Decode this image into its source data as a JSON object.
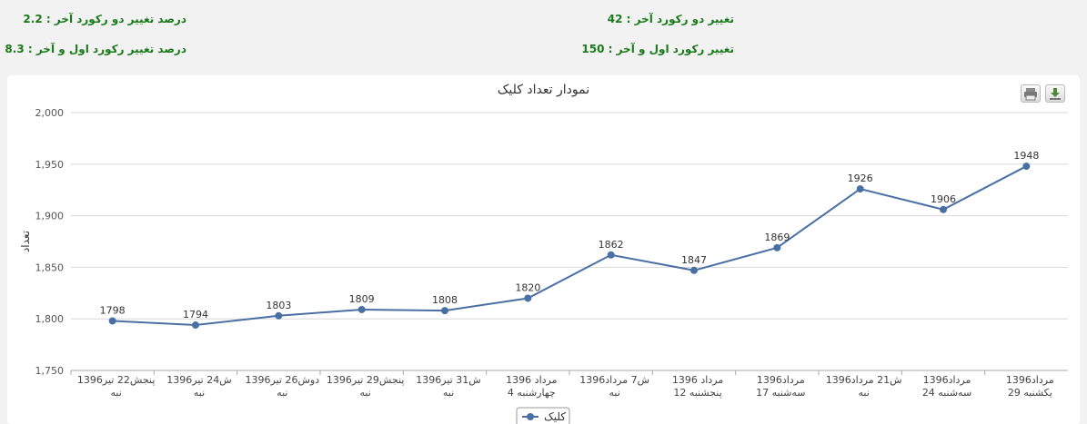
{
  "stats": {
    "pct_last_two": "درصد تغییر دو رکورد آخر : 2.2",
    "pct_first_last": "درصد تغییر رکورد اول و آخر : 8.3",
    "change_last_two": "تغییر دو رکورد آخر : 42",
    "change_first_last": "تغییر رکورد اول و آخر : 150"
  },
  "toolbar": {
    "print_icon": "print-icon",
    "download_icon": "download-icon"
  },
  "colors": {
    "series": "#4a6fa5",
    "grid": "#d8d8d8",
    "stats_text": "#1a7a1a"
  },
  "chart_data": {
    "type": "line",
    "title": "نمودار تعداد کلیک",
    "ylabel": "تعداد",
    "xlabel": "",
    "ylim": [
      1750,
      2000
    ],
    "yticks": [
      "1,750",
      "1,800",
      "1,850",
      "1,900",
      "1,950",
      "2,000"
    ],
    "grid": true,
    "legend": "bottom",
    "categories": [
      [
        "پنجش22 تیر1396",
        "نبه"
      ],
      [
        "ش24 تیر1396",
        "نبه"
      ],
      [
        "دوش26 تیر1396",
        "نبه"
      ],
      [
        "پنجش29 تیر1396",
        "نبه"
      ],
      [
        "ش31 تیر1396",
        "نبه"
      ],
      [
        "مرداد 1396",
        "چهارشنبه 4"
      ],
      [
        "ش7 مرداد1396",
        "نبه"
      ],
      [
        "مرداد 1396",
        "پنجشنبه 12"
      ],
      [
        "مرداد1396",
        "سه‌شنبه 17"
      ],
      [
        "ش21 مرداد1396",
        "نبه"
      ],
      [
        "مرداد1396",
        "سه‌شنبه 24"
      ],
      [
        "مرداد1396",
        "یکشنبه 29"
      ]
    ],
    "series": [
      {
        "name": "کلیک",
        "values": [
          1798,
          1794,
          1803,
          1809,
          1808,
          1820,
          1862,
          1847,
          1869,
          1926,
          1906,
          1948
        ]
      }
    ]
  }
}
